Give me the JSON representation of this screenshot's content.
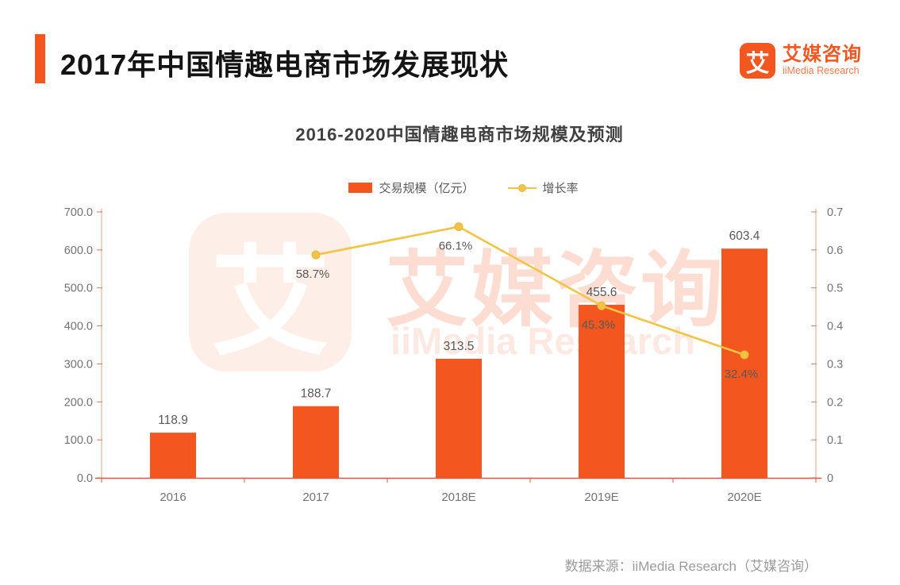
{
  "header": {
    "title": "2017年中国情趣电商市场发展现状",
    "logo": {
      "icon_char": "艾",
      "brand_cn": "艾媒咨询",
      "brand_en": "iiMedia Research"
    }
  },
  "chart": {
    "title": "2016-2020中国情趣电商市场规模及预测",
    "legend": {
      "bar_label": "交易规模（亿元）",
      "line_label": "增长率"
    }
  },
  "chart_data": {
    "type": "bar+line",
    "title": "2016-2020中国情趣电商市场规模及预测",
    "categories": [
      "2016",
      "2017",
      "2018E",
      "2019E",
      "2020E"
    ],
    "series": [
      {
        "name": "交易规模（亿元）",
        "type": "bar",
        "axis": "left",
        "values": [
          118.9,
          188.7,
          313.5,
          455.6,
          603.4
        ],
        "value_labels": [
          "118.9",
          "188.7",
          "313.5",
          "455.6",
          "603.4"
        ],
        "color": "#F3571F"
      },
      {
        "name": "增长率",
        "type": "line",
        "axis": "right",
        "values": [
          null,
          0.587,
          0.661,
          0.453,
          0.324
        ],
        "value_labels": [
          "",
          "58.7%",
          "66.1%",
          "45.3%",
          "32.4%"
        ],
        "color": "#F2C443"
      }
    ],
    "left_axis": {
      "min": 0,
      "max": 700,
      "step": 100,
      "tick_labels": [
        "0.0",
        "100.0",
        "200.0",
        "300.0",
        "400.0",
        "500.0",
        "600.0",
        "700.0"
      ]
    },
    "right_axis": {
      "min": 0,
      "max": 0.7,
      "step": 0.1,
      "tick_labels": [
        "0",
        "0.1",
        "0.2",
        "0.3",
        "0.4",
        "0.5",
        "0.6",
        "0.7"
      ]
    },
    "grid": false,
    "legend_position": "top",
    "style": {
      "bar_color": "#F3571F",
      "line_color": "#F2C443",
      "marker_stroke": "#E9B637",
      "axis_line_color": "#E2A481",
      "baseline_color": "#E2553B",
      "tick_color": "#CB7A5E",
      "tick_label_color": "#737373",
      "data_label_color": "#595959"
    }
  },
  "watermark": {
    "icon_char": "艾",
    "text_cn": "艾媒咨询",
    "text_en": "iiMedia Research"
  },
  "footer": {
    "source": "数据来源：iiMedia Research（艾媒咨询）"
  },
  "brand": {
    "accent_color": "#F3571F",
    "title_color": "#141414"
  }
}
